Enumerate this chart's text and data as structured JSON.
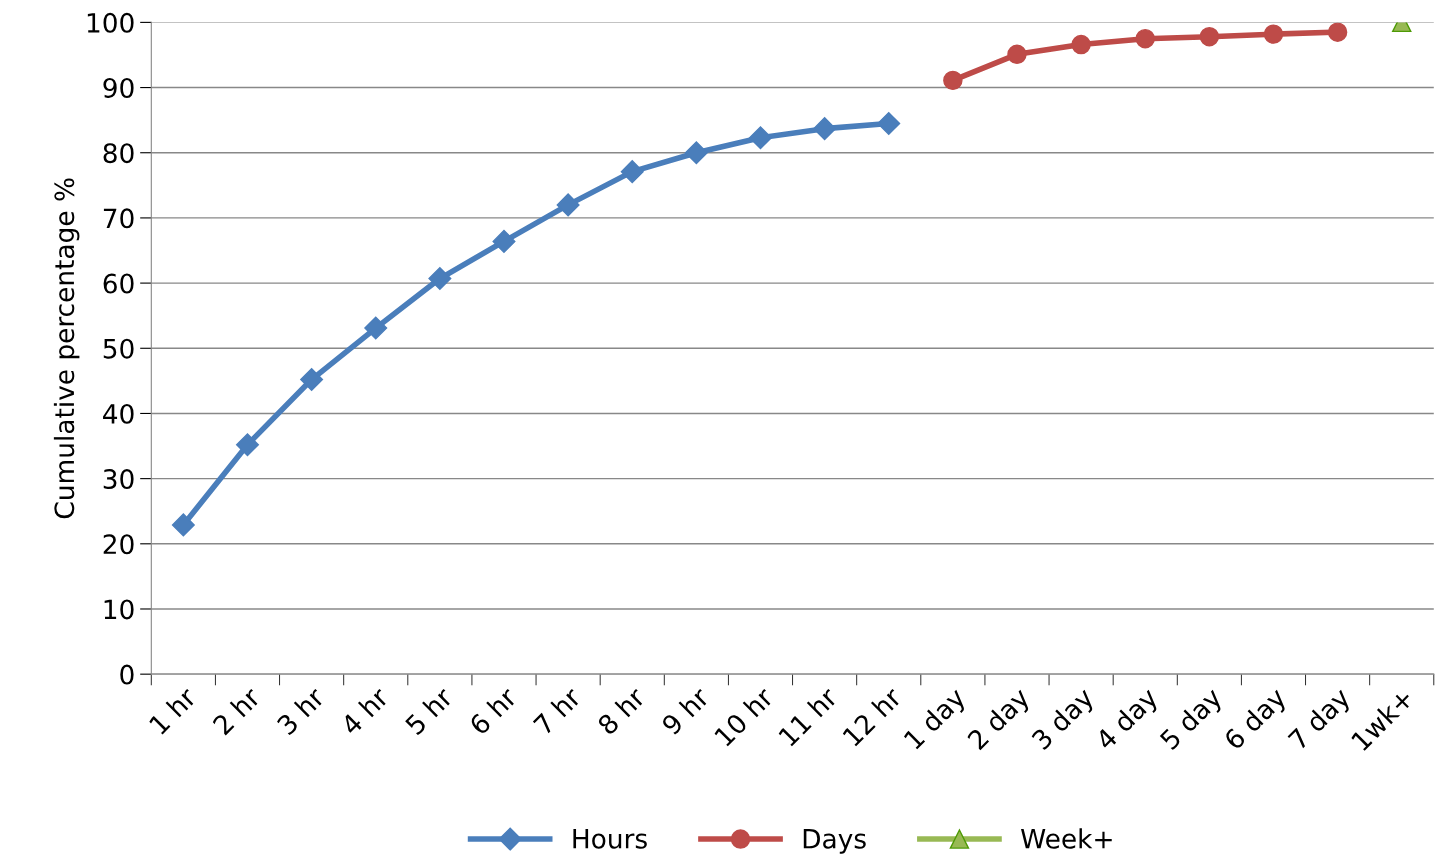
{
  "chart_data": {
    "type": "line",
    "ylabel": "Cumulative percentage %",
    "categories": [
      "1 hr",
      "2 hr",
      "3 hr",
      "4 hr",
      "5 hr",
      "6 hr",
      "7 hr",
      "8 hr",
      "9 hr",
      "10 hr",
      "11 hr",
      "12 hr",
      "1 day",
      "2 day",
      "3 day",
      "4 day",
      "5 day",
      "6 day",
      "7 day",
      "1wk+"
    ],
    "series": [
      {
        "name": "Hours",
        "color": "#4a7ebb",
        "marker": "diamond",
        "values": [
          22.9,
          35.2,
          45.2,
          53.1,
          60.7,
          66.4,
          72.0,
          77.1,
          80.0,
          82.3,
          83.7,
          84.5,
          null,
          null,
          null,
          null,
          null,
          null,
          null,
          null
        ]
      },
      {
        "name": "Days",
        "color": "#be4b48",
        "marker": "circle",
        "values": [
          null,
          null,
          null,
          null,
          null,
          null,
          null,
          null,
          null,
          null,
          null,
          null,
          91.1,
          95.1,
          96.6,
          97.5,
          97.8,
          98.2,
          98.5,
          null
        ]
      },
      {
        "name": "Week+",
        "color": "#98b954",
        "marker": "triangle",
        "values": [
          null,
          null,
          null,
          null,
          null,
          null,
          null,
          null,
          null,
          null,
          null,
          null,
          null,
          null,
          null,
          null,
          null,
          null,
          null,
          100
        ]
      }
    ],
    "ylim": [
      0,
      100
    ],
    "yticks": [
      0,
      10,
      20,
      30,
      40,
      50,
      60,
      70,
      80,
      90,
      100
    ],
    "grid": "y",
    "legend": "bottom",
    "line_style": "solid"
  }
}
